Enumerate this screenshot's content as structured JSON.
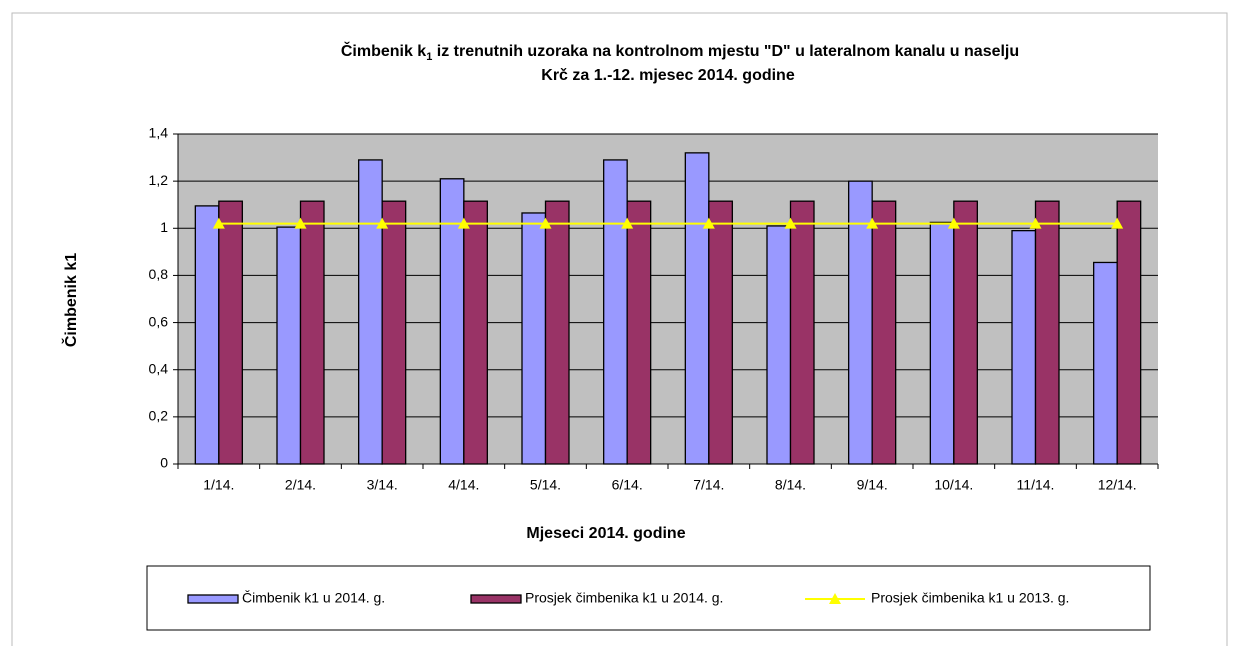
{
  "chart_data": {
    "type": "bar",
    "title": [
      "Čimbenik k",
      "1",
      " iz trenutnih uzoraka na kontrolnom mjestu \"D\" u lateralnom kanalu u naselju",
      "Krč za 1.-12. mjesec 2014. godine"
    ],
    "x_label": "Mjeseci 2014. godine",
    "y_label": "Čimbenik k1",
    "categories": [
      "1/14.",
      "2/14.",
      "3/14.",
      "4/14.",
      "5/14.",
      "6/14.",
      "7/14.",
      "8/14.",
      "9/14.",
      "10/14.",
      "11/14.",
      "12/14."
    ],
    "series": [
      {
        "name": "Čimbenik k1 u 2014. g.",
        "type": "bar",
        "color": "#9999ff",
        "values": [
          1.095,
          1.005,
          1.29,
          1.21,
          1.065,
          1.29,
          1.32,
          1.01,
          1.2,
          1.025,
          0.99,
          0.855
        ]
      },
      {
        "name": "Prosjek čimbenika k1 u 2014. g.",
        "type": "bar",
        "color": "#993366",
        "values": [
          1.115,
          1.115,
          1.115,
          1.115,
          1.115,
          1.115,
          1.115,
          1.115,
          1.115,
          1.115,
          1.115,
          1.115
        ]
      },
      {
        "name": "Prosjek čimbenika k1 u 2013. g.",
        "type": "line",
        "color": "#ffff00",
        "values": [
          1.02,
          1.02,
          1.02,
          1.02,
          1.02,
          1.02,
          1.02,
          1.02,
          1.02,
          1.02,
          1.02,
          1.02
        ]
      }
    ],
    "ylim": [
      0,
      1.4
    ],
    "yticks": [
      0,
      {
        "value": 0.2,
        "label": "0,2"
      },
      {
        "value": 0.4,
        "label": "0,4"
      },
      {
        "value": 0.6,
        "label": "0,6"
      },
      {
        "value": 0.8,
        "label": "0,8"
      },
      1,
      {
        "value": 1.2,
        "label": "1,2"
      },
      {
        "value": 1.4,
        "label": "1,4"
      }
    ],
    "grid": true,
    "legend": "bottom"
  }
}
